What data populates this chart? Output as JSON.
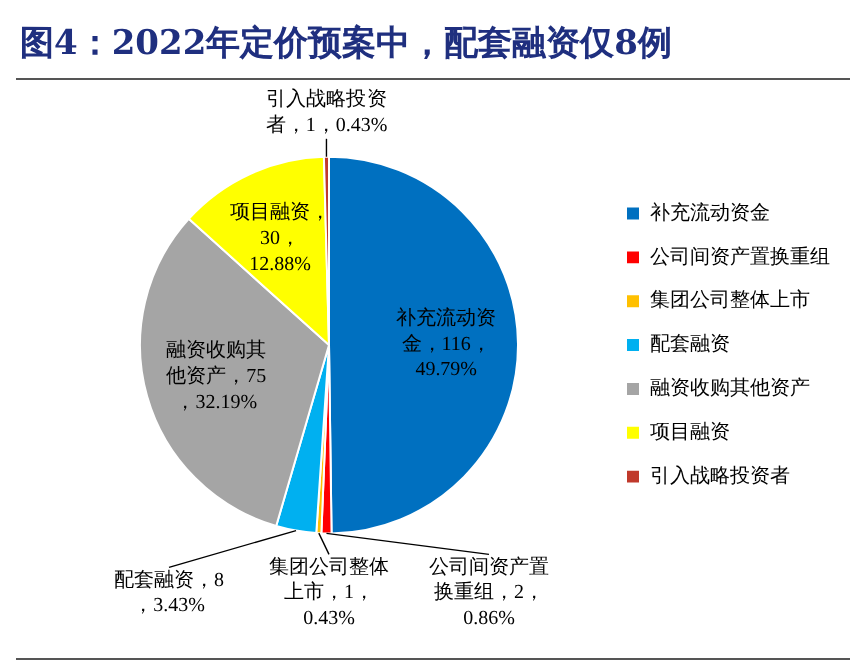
{
  "chart_data": {
    "type": "pie",
    "title": "图4：2022年定价预案中，配套融资仅8例",
    "categories": [
      "补充流动资金",
      "公司间资产置换重组",
      "集团公司整体上市",
      "配套融资",
      "融资收购其他资产",
      "项目融资",
      "引入战略投资者"
    ],
    "values": [
      116,
      2,
      1,
      8,
      75,
      30,
      1
    ],
    "colors": [
      "#0070c0",
      "#ff0000",
      "#ffc000",
      "#00b0f0",
      "#a5a5a5",
      "#ffff00",
      "#c0392b"
    ],
    "value_labels": [
      "补充流动资金，116，49.79%",
      "公司间资产置换重组，2，0.86%",
      "集团公司整体上市，1，0.43%",
      "配套融资，8，3.43%",
      "融资收购其他资产，75，32.19%",
      "项目融资，30，12.88%",
      "引入战略投资者，1，0.43%"
    ],
    "legend": "right"
  }
}
